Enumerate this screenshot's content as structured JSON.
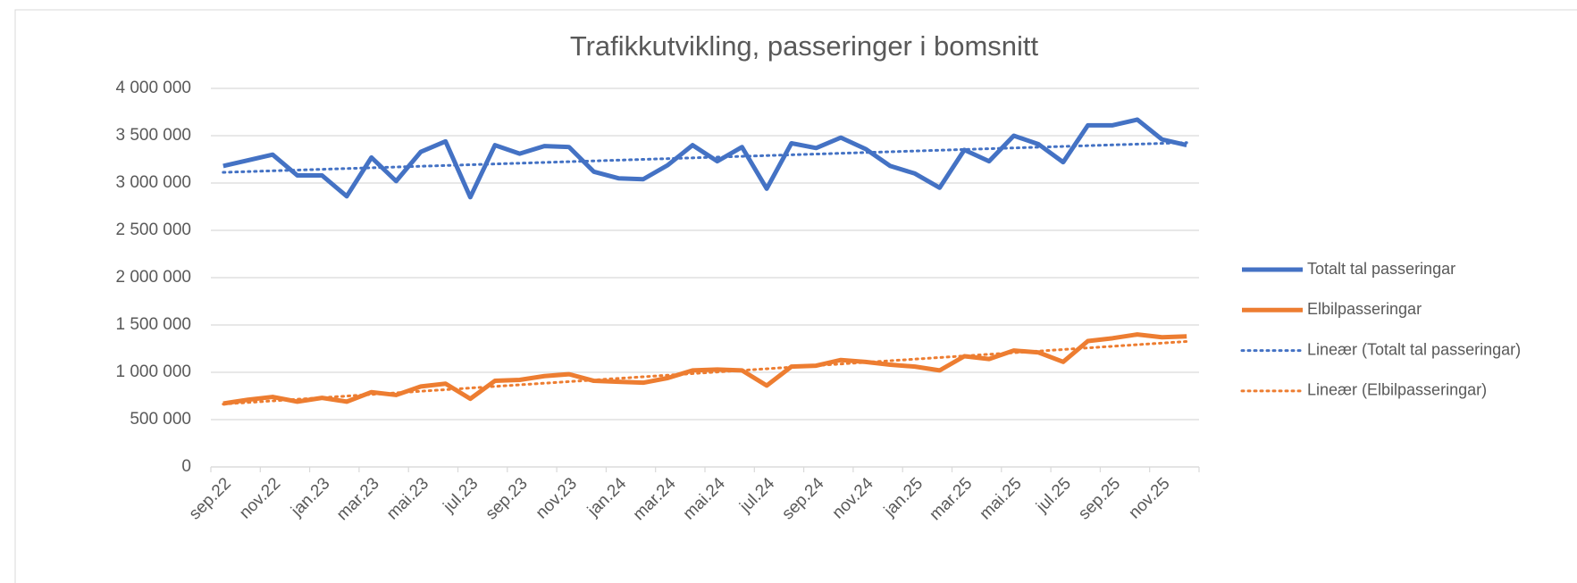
{
  "chart_data": {
    "type": "line",
    "title": "Trafikkutvikling, passeringer i bomsnitt",
    "categories": [
      "sep.22",
      null,
      "nov.22",
      null,
      "jan.23",
      null,
      "mar.23",
      null,
      "mai.23",
      null,
      "jul.23",
      null,
      "sep.23",
      null,
      "nov.23",
      null,
      "jan.24",
      null,
      "mar.24",
      null,
      "mai.24",
      null,
      "jul.24",
      null,
      "sep.24",
      null,
      "nov.24",
      null,
      "jan.25",
      null,
      "mar.25",
      null,
      "mai.25",
      null,
      "jul.25",
      null,
      "sep.25",
      null,
      "nov.25",
      null
    ],
    "series": [
      {
        "name": "Totalt tal passeringar",
        "color": "#4472c4",
        "values": [
          3180000,
          3240000,
          3300000,
          3080000,
          3080000,
          2860000,
          3270000,
          3020000,
          3330000,
          3440000,
          2850000,
          3400000,
          3310000,
          3390000,
          3380000,
          3120000,
          3050000,
          3040000,
          3190000,
          3400000,
          3230000,
          3380000,
          2940000,
          3420000,
          3370000,
          3480000,
          3360000,
          3180000,
          3100000,
          2950000,
          3350000,
          3230000,
          3500000,
          3410000,
          3220000,
          3610000,
          3610000,
          3670000,
          3460000,
          3400000
        ],
        "trendline": {
          "name": "Lineær (Totalt tal passeringar)",
          "type": "linear"
        }
      },
      {
        "name": "Elbilpasseringar",
        "color": "#ed7d31",
        "values": [
          670000,
          710000,
          740000,
          690000,
          730000,
          690000,
          790000,
          760000,
          850000,
          880000,
          720000,
          910000,
          920000,
          960000,
          980000,
          910000,
          900000,
          890000,
          940000,
          1020000,
          1030000,
          1020000,
          860000,
          1060000,
          1070000,
          1130000,
          1110000,
          1080000,
          1060000,
          1020000,
          1170000,
          1140000,
          1230000,
          1210000,
          1110000,
          1330000,
          1360000,
          1400000,
          1370000,
          1380000
        ],
        "trendline": {
          "name": "Lineær (Elbilpasseringar)",
          "type": "linear"
        }
      }
    ],
    "ylim": [
      0,
      4000000
    ],
    "yticks": [
      0,
      {
        "value": 500000,
        "label": "500 000"
      },
      {
        "value": 1000000,
        "label": "1 000 000"
      },
      {
        "value": 1500000,
        "label": "1 500 000"
      },
      {
        "value": 2000000,
        "label": "2 000 000"
      },
      {
        "value": 2500000,
        "label": "2 500 000"
      },
      {
        "value": 3000000,
        "label": "3 000 000"
      },
      {
        "value": 3500000,
        "label": "3 500 000"
      },
      {
        "value": 4000000,
        "label": "4 000 000"
      }
    ],
    "grid": true,
    "legend": "right"
  }
}
